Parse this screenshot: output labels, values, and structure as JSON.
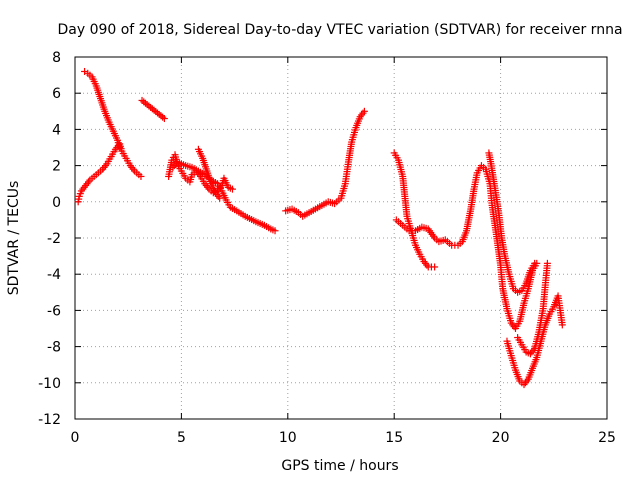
{
  "chart_data": {
    "type": "scatter",
    "title": "Day 090 of 2018, Sidereal Day-to-day VTEC variation (SDTVAR) for receiver rnna",
    "xlabel": "GPS time / hours",
    "ylabel": "SDTVAR / TECUs",
    "xlim": [
      0,
      25
    ],
    "ylim": [
      -12,
      8
    ],
    "xticks": [
      0,
      5,
      10,
      15,
      20,
      25
    ],
    "yticks": [
      -12,
      -10,
      -8,
      -6,
      -4,
      -2,
      0,
      2,
      4,
      6,
      8
    ],
    "grid": true,
    "marker": "plus",
    "color": "#ff0000",
    "series": [
      {
        "segments": [
          [
            [
              0.15,
              0.0
            ],
            [
              0.2,
              0.3
            ],
            [
              0.3,
              0.6
            ],
            [
              0.5,
              0.9
            ],
            [
              0.7,
              1.2
            ],
            [
              0.9,
              1.4
            ],
            [
              1.1,
              1.6
            ],
            [
              1.3,
              1.8
            ],
            [
              1.5,
              2.1
            ],
            [
              1.7,
              2.5
            ],
            [
              1.9,
              2.9
            ],
            [
              2.1,
              3.2
            ],
            [
              2.2,
              2.8
            ],
            [
              2.4,
              2.4
            ],
            [
              2.6,
              2.0
            ],
            [
              2.8,
              1.7
            ],
            [
              3.0,
              1.5
            ],
            [
              3.1,
              1.4
            ]
          ],
          [
            [
              0.45,
              7.2
            ],
            [
              0.6,
              7.1
            ],
            [
              0.8,
              6.9
            ],
            [
              1.0,
              6.4
            ],
            [
              1.2,
              5.7
            ],
            [
              1.4,
              5.0
            ],
            [
              1.6,
              4.4
            ],
            [
              1.8,
              3.9
            ],
            [
              2.0,
              3.4
            ],
            [
              2.1,
              3.0
            ]
          ],
          [
            [
              3.15,
              5.6
            ],
            [
              4.2,
              4.6
            ]
          ],
          [
            [
              4.4,
              1.4
            ],
            [
              4.55,
              2.3
            ],
            [
              4.7,
              2.6
            ],
            [
              4.8,
              2.1
            ],
            [
              5.0,
              1.7
            ],
            [
              5.2,
              1.3
            ],
            [
              5.4,
              1.1
            ],
            [
              5.5,
              1.5
            ],
            [
              5.7,
              1.7
            ],
            [
              5.9,
              1.4
            ],
            [
              6.1,
              1.0
            ],
            [
              6.3,
              0.7
            ],
            [
              6.5,
              0.5
            ],
            [
              6.7,
              0.6
            ],
            [
              6.9,
              0.9
            ],
            [
              7.0,
              1.3
            ],
            [
              7.2,
              0.8
            ],
            [
              7.4,
              0.7
            ]
          ],
          [
            [
              4.6,
              1.9
            ],
            [
              4.8,
              2.2
            ],
            [
              5.0,
              2.1
            ],
            [
              5.2,
              2.0
            ],
            [
              5.5,
              1.9
            ],
            [
              5.8,
              1.7
            ],
            [
              6.1,
              1.5
            ],
            [
              6.4,
              1.2
            ],
            [
              6.7,
              1.0
            ],
            [
              6.9,
              0.6
            ],
            [
              7.1,
              0.1
            ],
            [
              7.3,
              -0.3
            ],
            [
              7.6,
              -0.5
            ],
            [
              8.0,
              -0.8
            ],
            [
              8.5,
              -1.1
            ],
            [
              8.9,
              -1.3
            ],
            [
              9.2,
              -1.5
            ],
            [
              9.4,
              -1.6
            ]
          ],
          [
            [
              5.8,
              2.9
            ],
            [
              6.0,
              2.4
            ],
            [
              6.2,
              1.7
            ],
            [
              6.4,
              1.0
            ],
            [
              6.6,
              0.5
            ],
            [
              6.8,
              0.2
            ]
          ],
          [
            [
              9.9,
              -0.5
            ],
            [
              10.2,
              -0.4
            ],
            [
              10.5,
              -0.6
            ],
            [
              10.7,
              -0.8
            ],
            [
              11.0,
              -0.6
            ],
            [
              11.3,
              -0.4
            ],
            [
              11.6,
              -0.2
            ],
            [
              11.9,
              0.0
            ],
            [
              12.2,
              -0.1
            ],
            [
              12.5,
              0.2
            ],
            [
              12.7,
              1.0
            ],
            [
              12.85,
              2.2
            ],
            [
              13.0,
              3.3
            ],
            [
              13.2,
              4.1
            ],
            [
              13.4,
              4.7
            ],
            [
              13.6,
              5.0
            ]
          ],
          [
            [
              15.0,
              2.7
            ],
            [
              15.2,
              2.3
            ],
            [
              15.4,
              1.4
            ],
            [
              15.5,
              0.3
            ],
            [
              15.6,
              -0.8
            ],
            [
              15.8,
              -1.6
            ],
            [
              16.0,
              -2.4
            ],
            [
              16.2,
              -2.9
            ],
            [
              16.4,
              -3.3
            ],
            [
              16.6,
              -3.6
            ],
            [
              16.9,
              -3.6
            ]
          ],
          [
            [
              15.1,
              -1.0
            ],
            [
              15.4,
              -1.3
            ],
            [
              15.7,
              -1.6
            ],
            [
              16.0,
              -1.6
            ],
            [
              16.3,
              -1.4
            ],
            [
              16.6,
              -1.5
            ],
            [
              16.9,
              -2.0
            ],
            [
              17.1,
              -2.2
            ],
            [
              17.4,
              -2.1
            ],
            [
              17.7,
              -2.4
            ],
            [
              18.0,
              -2.4
            ],
            [
              18.2,
              -2.2
            ],
            [
              18.4,
              -1.6
            ],
            [
              18.6,
              -0.4
            ],
            [
              18.75,
              0.7
            ],
            [
              18.9,
              1.6
            ],
            [
              19.1,
              2.0
            ],
            [
              19.3,
              1.8
            ],
            [
              19.5,
              1.0
            ],
            [
              19.6,
              -0.2
            ],
            [
              19.8,
              -1.8
            ],
            [
              20.0,
              -3.5
            ],
            [
              20.1,
              -4.8
            ],
            [
              20.3,
              -5.9
            ],
            [
              20.5,
              -6.7
            ],
            [
              20.7,
              -7.0
            ],
            [
              20.9,
              -6.6
            ],
            [
              21.1,
              -5.6
            ],
            [
              21.3,
              -4.8
            ],
            [
              21.5,
              -3.8
            ],
            [
              21.7,
              -3.4
            ]
          ],
          [
            [
              19.45,
              2.7
            ],
            [
              19.55,
              2.1
            ],
            [
              19.7,
              1.0
            ],
            [
              19.9,
              -0.5
            ],
            [
              20.05,
              -2.0
            ],
            [
              20.2,
              -3.0
            ],
            [
              20.4,
              -4.0
            ],
            [
              20.6,
              -4.8
            ],
            [
              20.8,
              -5.0
            ],
            [
              21.0,
              -4.9
            ],
            [
              21.2,
              -4.5
            ],
            [
              21.4,
              -3.8
            ],
            [
              21.6,
              -3.4
            ]
          ],
          [
            [
              20.3,
              -7.7
            ],
            [
              20.5,
              -8.5
            ],
            [
              20.7,
              -9.3
            ],
            [
              20.9,
              -9.9
            ],
            [
              21.1,
              -10.1
            ],
            [
              21.3,
              -9.8
            ],
            [
              21.5,
              -9.2
            ],
            [
              21.7,
              -8.6
            ],
            [
              21.9,
              -7.7
            ],
            [
              22.1,
              -6.8
            ],
            [
              22.3,
              -6.2
            ],
            [
              22.5,
              -5.8
            ],
            [
              22.7,
              -5.2
            ],
            [
              22.8,
              -6.0
            ],
            [
              22.9,
              -6.8
            ]
          ],
          [
            [
              20.8,
              -7.5
            ],
            [
              21.0,
              -7.9
            ],
            [
              21.2,
              -8.3
            ],
            [
              21.4,
              -8.4
            ],
            [
              21.6,
              -8.1
            ],
            [
              21.8,
              -7.2
            ],
            [
              22.0,
              -5.9
            ],
            [
              22.1,
              -4.6
            ],
            [
              22.2,
              -3.4
            ]
          ]
        ]
      }
    ]
  }
}
